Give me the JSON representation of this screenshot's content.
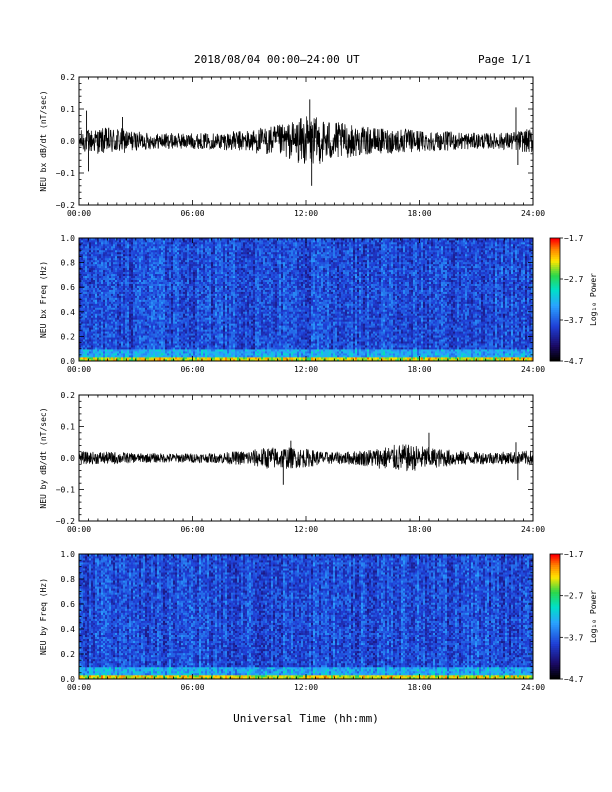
{
  "header": {
    "title": "2018/08/04  00:00–24:00 UT",
    "page": "Page 1/1"
  },
  "footer": {
    "xlabel": "Universal Time (hh:mm)"
  },
  "chart_data": [
    {
      "type": "line",
      "ylabel": "NEU bx dB/dt (nT/sec)",
      "ylim": [
        -0.2,
        0.2
      ],
      "yticks": [
        -0.2,
        -0.1,
        0.0,
        0.1,
        0.2
      ],
      "yticklabels": [
        "−0.2",
        "−0.1",
        "0.0",
        "0.1",
        "0.2"
      ],
      "xlim": [
        0,
        24
      ],
      "xticks": [
        0,
        6,
        12,
        18,
        24
      ],
      "xticklabels": [
        "00:00",
        "06:00",
        "12:00",
        "18:00",
        "24:00"
      ],
      "envelope_hours": [
        0,
        1,
        2,
        3,
        4,
        5,
        6,
        7,
        8,
        9,
        10,
        11,
        12,
        13,
        14,
        15,
        16,
        17,
        18,
        19,
        20,
        21,
        22,
        23,
        24
      ],
      "envelope_amplitude": [
        0.035,
        0.04,
        0.045,
        0.03,
        0.025,
        0.025,
        0.025,
        0.025,
        0.03,
        0.035,
        0.045,
        0.055,
        0.08,
        0.07,
        0.055,
        0.045,
        0.04,
        0.04,
        0.035,
        0.03,
        0.03,
        0.025,
        0.025,
        0.03,
        0.04
      ],
      "spikes": [
        [
          0.4,
          0.095
        ],
        [
          0.5,
          -0.095
        ],
        [
          2.3,
          0.075
        ],
        [
          12.2,
          0.13
        ],
        [
          12.3,
          -0.14
        ],
        [
          23.1,
          0.105
        ],
        [
          23.2,
          -0.075
        ]
      ],
      "grid": false
    },
    {
      "type": "heatmap",
      "ylabel": "NEU bx Freq (Hz)",
      "ylim": [
        0.0,
        1.0
      ],
      "yticks": [
        0.0,
        0.2,
        0.4,
        0.6,
        0.8,
        1.0
      ],
      "yticklabels": [
        "0.0",
        "0.2",
        "0.4",
        "0.6",
        "0.8",
        "1.0"
      ],
      "xlim": [
        0,
        24
      ],
      "xticks": [
        0,
        6,
        12,
        18,
        24
      ],
      "xticklabels": [
        "00:00",
        "06:00",
        "12:00",
        "18:00",
        "24:00"
      ],
      "colorbar": {
        "label": "Log₁₀ Power",
        "range": [
          -4.7,
          -1.7
        ],
        "ticks": [
          -1.7,
          -2.7,
          -3.7,
          -4.7
        ],
        "ticklabels": [
          "−1.7",
          "−2.7",
          "−3.7",
          "−4.7"
        ]
      },
      "typical_log_power": {
        "0.00-0.03 Hz": -2.3,
        "0.03-0.10 Hz": -3.3,
        "0.10-1.00 Hz": -3.8
      },
      "grid": false
    },
    {
      "type": "line",
      "ylabel": "NEU by dB/dt (nT/sec)",
      "ylim": [
        -0.2,
        0.2
      ],
      "yticks": [
        -0.2,
        -0.1,
        0.0,
        0.1,
        0.2
      ],
      "yticklabels": [
        "−0.2",
        "−0.1",
        "0.0",
        "0.1",
        "0.2"
      ],
      "xlim": [
        0,
        24
      ],
      "xticks": [
        0,
        6,
        12,
        18,
        24
      ],
      "xticklabels": [
        "00:00",
        "06:00",
        "12:00",
        "18:00",
        "24:00"
      ],
      "envelope_hours": [
        0,
        1,
        2,
        3,
        4,
        5,
        6,
        7,
        8,
        9,
        10,
        11,
        12,
        13,
        14,
        15,
        16,
        17,
        18,
        19,
        20,
        21,
        22,
        23,
        24
      ],
      "envelope_amplitude": [
        0.02,
        0.02,
        0.02,
        0.015,
        0.015,
        0.015,
        0.015,
        0.015,
        0.02,
        0.025,
        0.035,
        0.035,
        0.03,
        0.02,
        0.02,
        0.025,
        0.035,
        0.045,
        0.04,
        0.03,
        0.025,
        0.02,
        0.02,
        0.02,
        0.025
      ],
      "spikes": [
        [
          10.8,
          -0.085
        ],
        [
          11.2,
          0.055
        ],
        [
          18.5,
          0.08
        ],
        [
          23.1,
          0.05
        ],
        [
          23.2,
          -0.07
        ]
      ],
      "grid": false
    },
    {
      "type": "heatmap",
      "ylabel": "NEU by Freq (Hz)",
      "ylim": [
        0.0,
        1.0
      ],
      "yticks": [
        0.0,
        0.2,
        0.4,
        0.6,
        0.8,
        1.0
      ],
      "yticklabels": [
        "0.0",
        "0.2",
        "0.4",
        "0.6",
        "0.8",
        "1.0"
      ],
      "xlim": [
        0,
        24
      ],
      "xticks": [
        0,
        6,
        12,
        18,
        24
      ],
      "xticklabels": [
        "00:00",
        "06:00",
        "12:00",
        "18:00",
        "24:00"
      ],
      "colorbar": {
        "label": "Log₁₀ Power",
        "range": [
          -4.7,
          -1.7
        ],
        "ticks": [
          -1.7,
          -2.7,
          -3.7,
          -4.7
        ],
        "ticklabels": [
          "−1.7",
          "−2.7",
          "−3.7",
          "−4.7"
        ]
      },
      "typical_log_power": {
        "0.00-0.03 Hz": -2.3,
        "0.03-0.10 Hz": -3.3,
        "0.10-1.00 Hz": -3.8
      },
      "grid": false
    }
  ]
}
